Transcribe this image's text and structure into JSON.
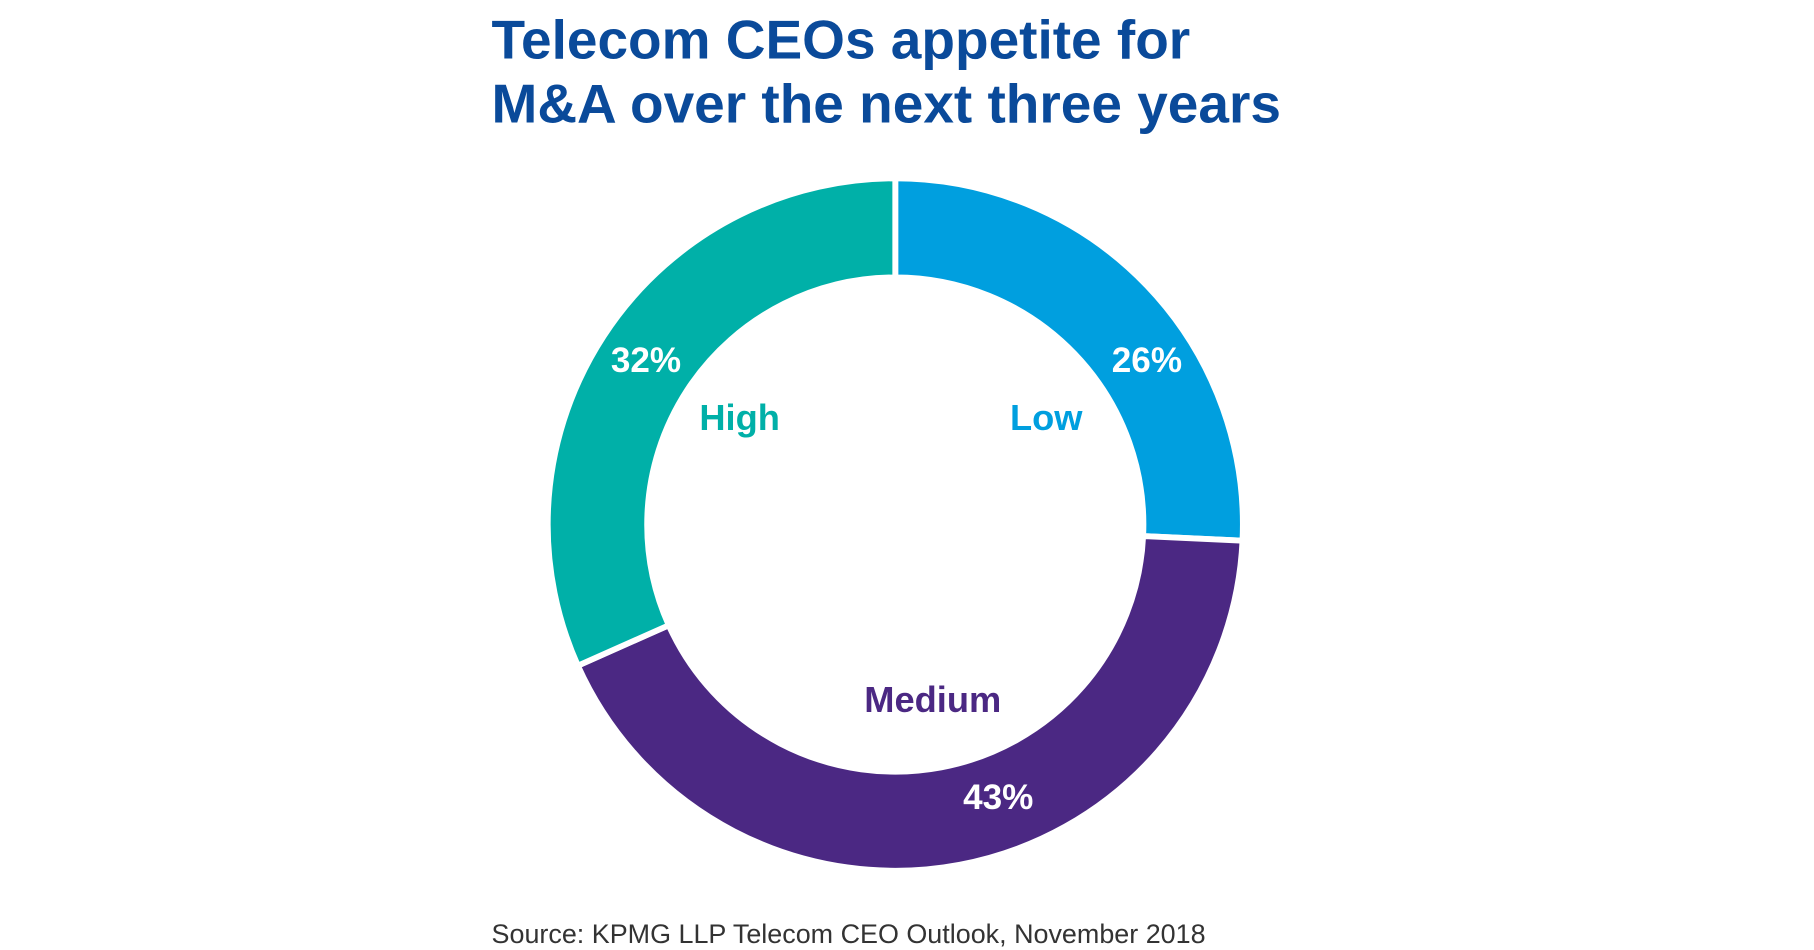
{
  "chart_data": {
    "type": "pie",
    "variant": "donut",
    "title_lines": [
      "Telecom CEOs appetite for",
      "M&A over the next three years"
    ],
    "categories": [
      "Low",
      "Medium",
      "High"
    ],
    "values": [
      26,
      43,
      32
    ],
    "labels": [
      "26%",
      "43%",
      "32%"
    ],
    "colors": [
      "#009fdf",
      "#4b2883",
      "#00b0a8"
    ],
    "source": "Source: KPMG LLP Telecom CEO Outlook, November 2018"
  }
}
